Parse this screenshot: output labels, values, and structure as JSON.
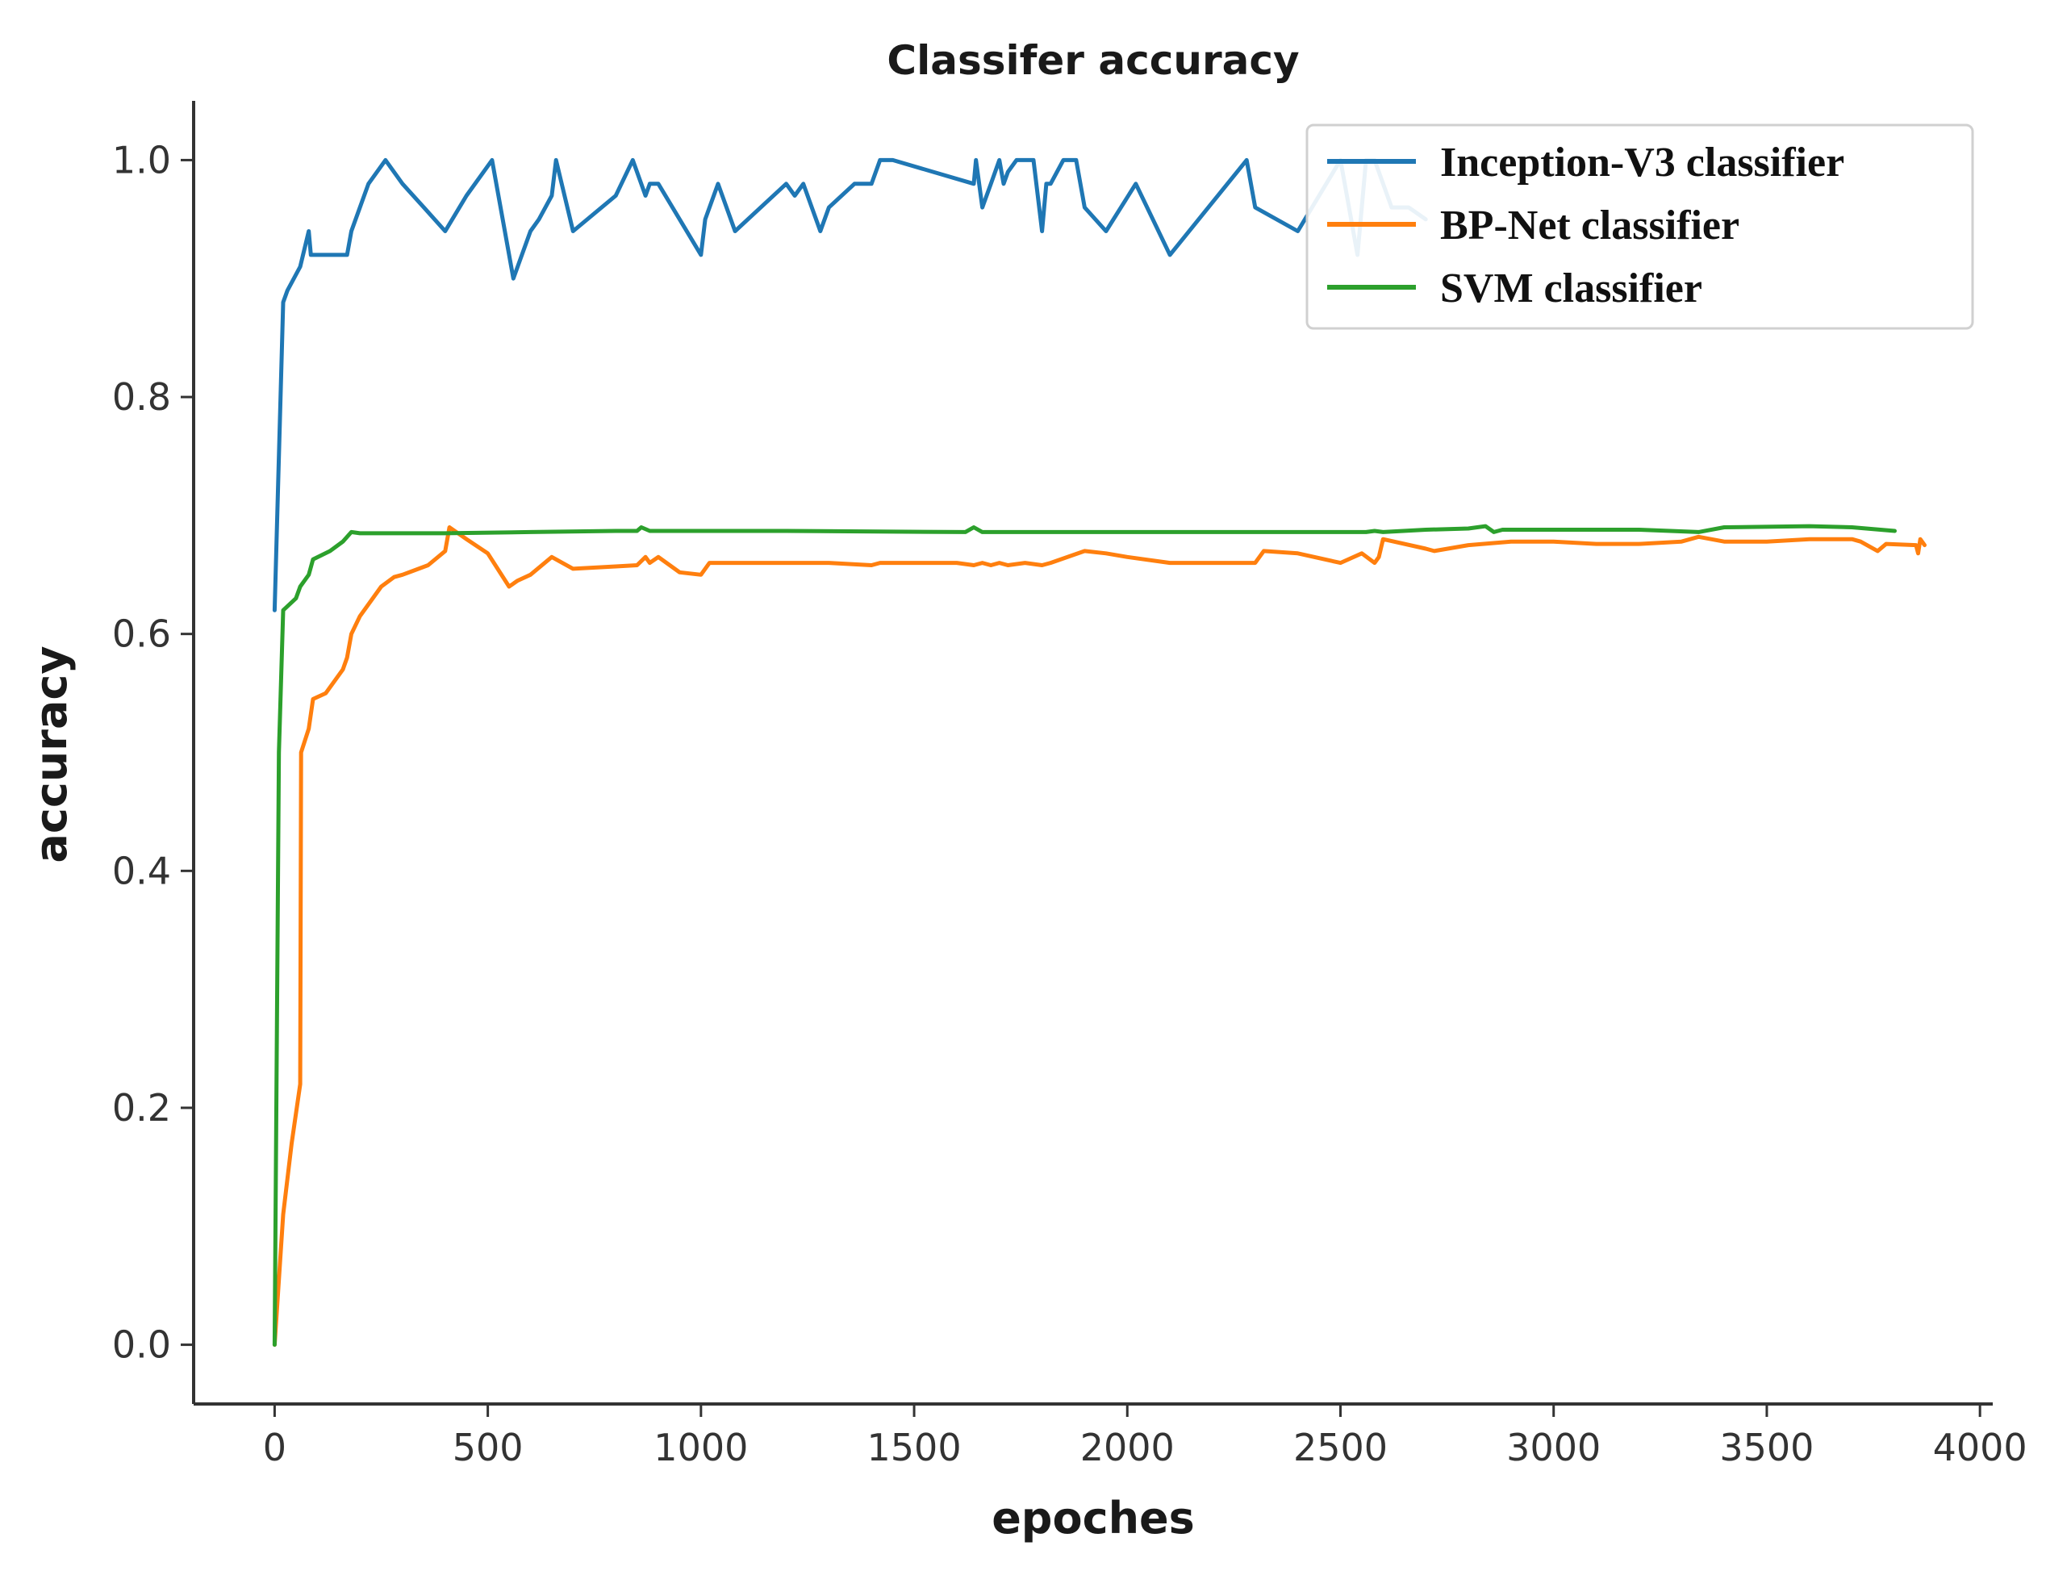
{
  "chart_data": {
    "type": "line",
    "title": "Classifer accuracy",
    "xlabel": "epoches",
    "ylabel": "accuracy",
    "xlim": [
      -190,
      4030
    ],
    "ylim": [
      -0.05,
      1.05
    ],
    "xticks": [
      0,
      500,
      1000,
      1500,
      2000,
      2500,
      3000,
      3500,
      4000
    ],
    "yticks": [
      0.0,
      0.2,
      0.4,
      0.6,
      0.8,
      1.0
    ],
    "xtick_labels": [
      "0",
      "500",
      "1000",
      "1500",
      "2000",
      "2500",
      "3000",
      "3500",
      "4000"
    ],
    "ytick_labels": [
      "0.0",
      "0.2",
      "0.4",
      "0.6",
      "0.8",
      "1.0"
    ],
    "grid": false,
    "legend_position": "top-right",
    "series": [
      {
        "name": "Inception-V3 classifier",
        "color": "#1f77b4",
        "x": [
          0,
          20,
          30,
          60,
          80,
          85,
          100,
          120,
          170,
          180,
          200,
          220,
          260,
          300,
          350,
          400,
          450,
          510,
          560,
          600,
          620,
          650,
          660,
          700,
          800,
          840,
          870,
          880,
          900,
          950,
          1000,
          1010,
          1040,
          1080,
          1200,
          1220,
          1240,
          1280,
          1300,
          1360,
          1400,
          1420,
          1450,
          1640,
          1645,
          1660,
          1680,
          1700,
          1710,
          1720,
          1740,
          1780,
          1800,
          1810,
          1820,
          1850,
          1880,
          1900,
          1950,
          2020,
          2100,
          2280,
          2300,
          2400,
          2500,
          2520,
          2540,
          2560,
          2580,
          2620,
          2660,
          2700
        ],
        "y": [
          0.62,
          0.88,
          0.89,
          0.91,
          0.94,
          0.92,
          0.92,
          0.92,
          0.92,
          0.94,
          0.96,
          0.98,
          1.0,
          0.98,
          0.96,
          0.94,
          0.97,
          1.0,
          0.9,
          0.94,
          0.95,
          0.97,
          1.0,
          0.94,
          0.97,
          1.0,
          0.97,
          0.98,
          0.98,
          0.95,
          0.92,
          0.95,
          0.98,
          0.94,
          0.98,
          0.97,
          0.98,
          0.94,
          0.96,
          0.98,
          0.98,
          1.0,
          1.0,
          0.98,
          1.0,
          0.96,
          0.98,
          1.0,
          0.98,
          0.99,
          1.0,
          1.0,
          0.94,
          0.98,
          0.98,
          1.0,
          1.0,
          0.96,
          0.94,
          0.98,
          0.92,
          1.0,
          0.96,
          0.94,
          1.0,
          0.96,
          0.92,
          1.0,
          1.0,
          0.96,
          0.96,
          0.95
        ]
      },
      {
        "name": "BP-Net classifier",
        "color": "#ff7f0e",
        "x": [
          0,
          20,
          40,
          60,
          62,
          80,
          90,
          120,
          160,
          170,
          180,
          200,
          250,
          280,
          300,
          360,
          400,
          410,
          450,
          500,
          550,
          570,
          600,
          650,
          700,
          800,
          850,
          870,
          880,
          900,
          950,
          1000,
          1020,
          1050,
          1200,
          1250,
          1300,
          1400,
          1420,
          1600,
          1640,
          1660,
          1680,
          1700,
          1720,
          1760,
          1800,
          1820,
          1860,
          1900,
          1950,
          2000,
          2100,
          2200,
          2300,
          2320,
          2400,
          2500,
          2550,
          2580,
          2590,
          2600,
          2700,
          2720,
          2800,
          2900,
          3000,
          3100,
          3200,
          3300,
          3340,
          3400,
          3500,
          3600,
          3700,
          3720,
          3760,
          3780,
          3850,
          3855,
          3860,
          3870
        ],
        "y": [
          0.0,
          0.11,
          0.17,
          0.22,
          0.5,
          0.52,
          0.545,
          0.55,
          0.57,
          0.58,
          0.6,
          0.615,
          0.64,
          0.648,
          0.65,
          0.658,
          0.67,
          0.69,
          0.68,
          0.668,
          0.64,
          0.645,
          0.65,
          0.665,
          0.655,
          0.657,
          0.658,
          0.665,
          0.66,
          0.665,
          0.652,
          0.65,
          0.66,
          0.66,
          0.66,
          0.66,
          0.66,
          0.658,
          0.66,
          0.66,
          0.658,
          0.66,
          0.658,
          0.66,
          0.658,
          0.66,
          0.658,
          0.66,
          0.665,
          0.67,
          0.668,
          0.665,
          0.66,
          0.66,
          0.66,
          0.67,
          0.668,
          0.66,
          0.668,
          0.66,
          0.665,
          0.68,
          0.672,
          0.67,
          0.675,
          0.678,
          0.678,
          0.676,
          0.676,
          0.678,
          0.682,
          0.678,
          0.678,
          0.68,
          0.68,
          0.678,
          0.67,
          0.676,
          0.675,
          0.668,
          0.68,
          0.675
        ]
      },
      {
        "name": "SVM classifier",
        "color": "#2ca02c",
        "x": [
          0,
          10,
          20,
          50,
          60,
          80,
          90,
          130,
          160,
          180,
          200,
          400,
          600,
          800,
          850,
          860,
          880,
          900,
          1200,
          1620,
          1640,
          1660,
          1800,
          2000,
          2200,
          2400,
          2560,
          2580,
          2600,
          2700,
          2800,
          2840,
          2860,
          2880,
          2900,
          3000,
          3200,
          3340,
          3400,
          3600,
          3700,
          3800
        ],
        "y": [
          0.0,
          0.5,
          0.62,
          0.63,
          0.64,
          0.65,
          0.663,
          0.67,
          0.678,
          0.686,
          0.685,
          0.685,
          0.686,
          0.687,
          0.687,
          0.69,
          0.687,
          0.687,
          0.687,
          0.686,
          0.69,
          0.686,
          0.686,
          0.686,
          0.686,
          0.686,
          0.686,
          0.687,
          0.686,
          0.688,
          0.689,
          0.691,
          0.686,
          0.688,
          0.688,
          0.688,
          0.688,
          0.686,
          0.69,
          0.691,
          0.69,
          0.687
        ]
      }
    ]
  }
}
